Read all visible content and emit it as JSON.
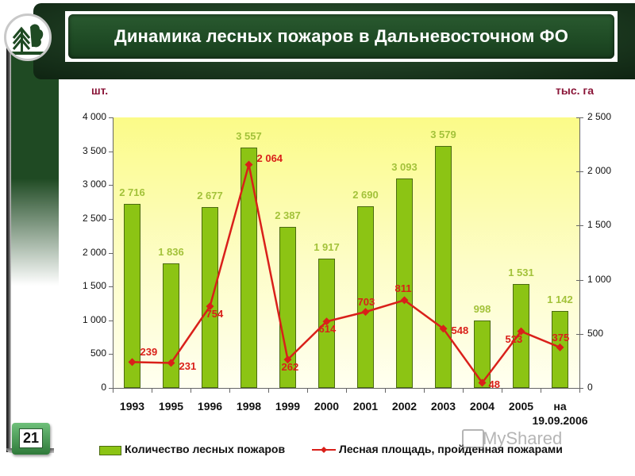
{
  "slide": {
    "title": "Динамика лесных пожаров в Дальневосточном ФО",
    "page_number": "21",
    "watermark": "MyShared"
  },
  "colors": {
    "bar": "#8cc414",
    "bar_label": "#a3c23a",
    "line": "#d9201a",
    "unit_label": "#8a1538",
    "header_green": "#1e4a24"
  },
  "chart_data": {
    "type": "bar+line",
    "title": "Динамика лесных пожаров в Дальневосточном ФО",
    "categories": [
      "1993",
      "1995",
      "1996",
      "1998",
      "1999",
      "2000",
      "2001",
      "2002",
      "2003",
      "2004",
      "2005",
      "на 19.09.2006"
    ],
    "category_lines": [
      [
        "1993"
      ],
      [
        "1995"
      ],
      [
        "1996"
      ],
      [
        "1998"
      ],
      [
        "1999"
      ],
      [
        "2000"
      ],
      [
        "2001"
      ],
      [
        "2002"
      ],
      [
        "2003"
      ],
      [
        "2004"
      ],
      [
        "2005"
      ],
      [
        "на",
        "19.09.2006"
      ]
    ],
    "series": [
      {
        "name": "Количество лесных пожаров",
        "type": "bar",
        "axis": "left",
        "values": [
          2716,
          1836,
          2677,
          3557,
          2387,
          1917,
          2690,
          3093,
          3579,
          998,
          1531,
          1142
        ],
        "labels": [
          "2 716",
          "1 836",
          "2 677",
          "3 557",
          "2 387",
          "1 917",
          "2 690",
          "3 093",
          "3 579",
          "998",
          "1 531",
          "1 142"
        ]
      },
      {
        "name": "Лесная площадь, пройденная пожарами",
        "type": "line",
        "axis": "right",
        "values": [
          239,
          231,
          754,
          2064,
          262,
          614,
          703,
          811,
          548,
          48,
          523,
          375
        ],
        "labels": [
          "239",
          "231",
          "754",
          "2 064",
          "262",
          "614",
          "703",
          "811",
          "548",
          "48",
          "523",
          "375"
        ]
      }
    ],
    "y_left": {
      "label": "шт.",
      "range": [
        0,
        4000
      ],
      "ticks": [
        0,
        500,
        1000,
        1500,
        2000,
        2500,
        3000,
        3500,
        4000
      ],
      "tick_labels": [
        "0",
        "500",
        "1 000",
        "1 500",
        "2 000",
        "2 500",
        "3 000",
        "3 500",
        "4 000"
      ]
    },
    "y_right": {
      "label": "тыс. га",
      "range": [
        0,
        2500
      ],
      "ticks": [
        0,
        500,
        1000,
        1500,
        2000,
        2500
      ],
      "tick_labels": [
        "0",
        "500",
        "1 000",
        "1 500",
        "2 000",
        "2 500"
      ]
    },
    "grid": false,
    "legend_position": "bottom",
    "legend": [
      "Количество лесных пожаров",
      "Лесная площадь, пройденная пожарами"
    ]
  }
}
